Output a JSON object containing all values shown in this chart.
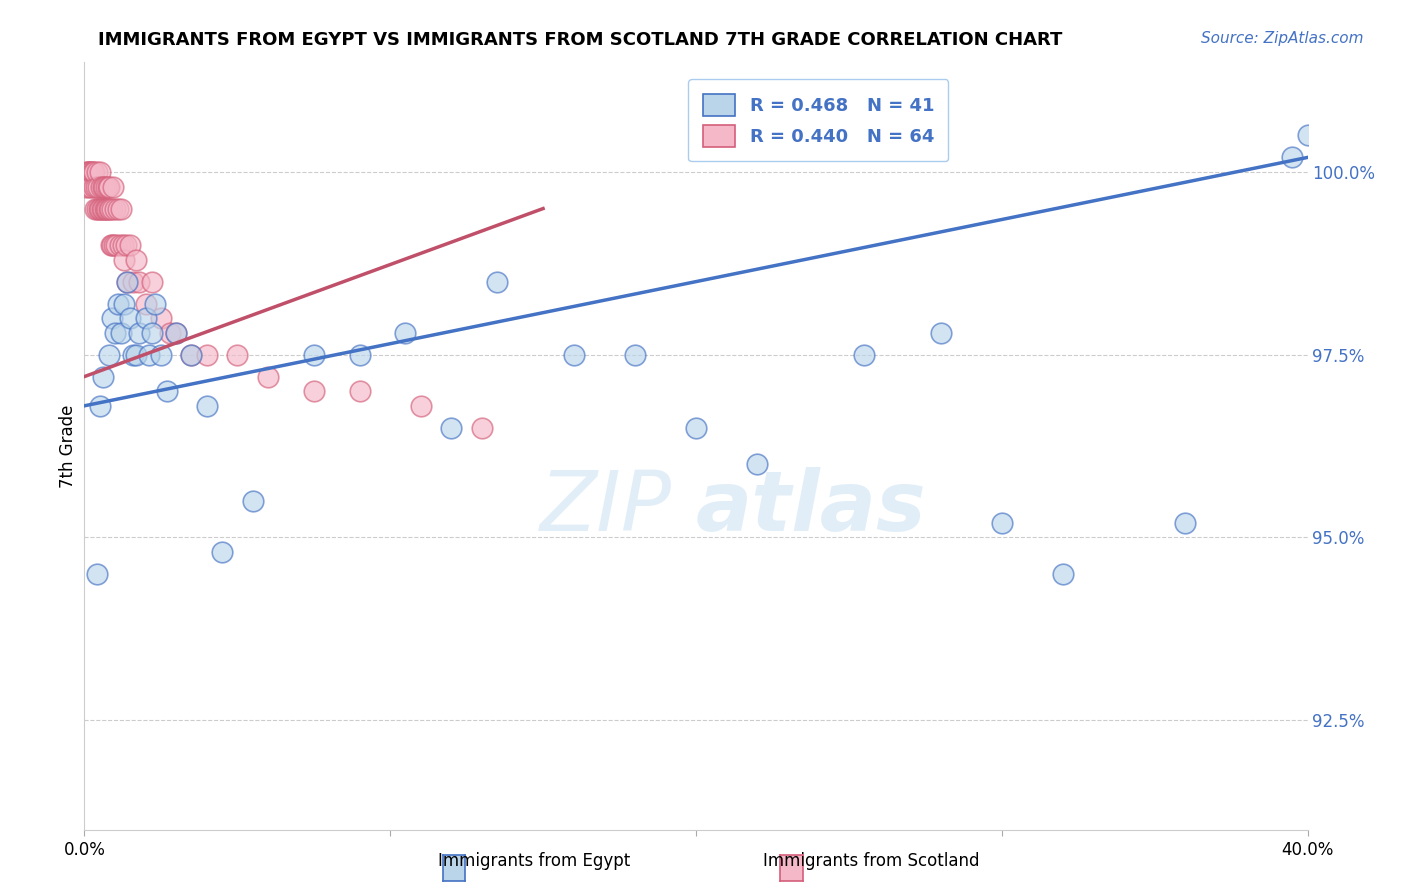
{
  "title": "IMMIGRANTS FROM EGYPT VS IMMIGRANTS FROM SCOTLAND 7TH GRADE CORRELATION CHART",
  "source": "Source: ZipAtlas.com",
  "ylabel": "7th Grade",
  "xlim": [
    0.0,
    40.0
  ],
  "ylim": [
    91.0,
    101.5
  ],
  "yticks": [
    92.5,
    95.0,
    97.5,
    100.0
  ],
  "ytick_labels": [
    "92.5%",
    "95.0%",
    "97.5%",
    "100.0%"
  ],
  "legend_r_egypt": "R = 0.468",
  "legend_n_egypt": "N = 41",
  "legend_r_scotland": "R = 0.440",
  "legend_n_scotland": "N = 64",
  "egypt_fill_color": "#bad4ea",
  "scotland_fill_color": "#f4b8c8",
  "egypt_edge_color": "#4472c4",
  "scotland_edge_color": "#d45f7a",
  "egypt_line_color": "#4472c4",
  "scotland_line_color": "#c0506a",
  "legend_text_color": "#4472c4",
  "watermark_color": "#d5e8f5",
  "egypt_scatter_x": [
    0.4,
    0.5,
    0.6,
    0.8,
    0.9,
    1.0,
    1.1,
    1.2,
    1.3,
    1.4,
    1.5,
    1.6,
    1.7,
    1.8,
    2.0,
    2.1,
    2.2,
    2.3,
    2.5,
    2.7,
    3.0,
    3.5,
    4.0,
    4.5,
    5.5,
    7.5,
    9.0,
    10.5,
    12.0,
    13.5,
    16.0,
    18.0,
    20.0,
    22.0,
    25.5,
    28.0,
    30.0,
    32.0,
    36.0,
    39.5,
    40.0
  ],
  "egypt_scatter_y": [
    94.5,
    96.8,
    97.2,
    97.5,
    98.0,
    97.8,
    98.2,
    97.8,
    98.2,
    98.5,
    98.0,
    97.5,
    97.5,
    97.8,
    98.0,
    97.5,
    97.8,
    98.2,
    97.5,
    97.0,
    97.8,
    97.5,
    96.8,
    94.8,
    95.5,
    97.5,
    97.5,
    97.8,
    96.5,
    98.5,
    97.5,
    97.5,
    96.5,
    96.0,
    97.5,
    97.8,
    95.2,
    94.5,
    95.2,
    100.2,
    100.5
  ],
  "scotland_scatter_x": [
    0.05,
    0.08,
    0.1,
    0.12,
    0.15,
    0.18,
    0.2,
    0.22,
    0.25,
    0.28,
    0.3,
    0.32,
    0.35,
    0.38,
    0.4,
    0.42,
    0.45,
    0.48,
    0.5,
    0.52,
    0.55,
    0.58,
    0.6,
    0.62,
    0.65,
    0.68,
    0.7,
    0.72,
    0.75,
    0.78,
    0.8,
    0.82,
    0.85,
    0.88,
    0.9,
    0.92,
    0.95,
    0.98,
    1.0,
    1.05,
    1.1,
    1.15,
    1.2,
    1.25,
    1.3,
    1.35,
    1.4,
    1.5,
    1.6,
    1.7,
    1.8,
    2.0,
    2.2,
    2.5,
    2.8,
    3.0,
    3.5,
    4.0,
    5.0,
    6.0,
    7.5,
    9.0,
    11.0,
    13.0
  ],
  "scotland_scatter_y": [
    99.8,
    100.0,
    100.0,
    100.0,
    99.8,
    100.0,
    100.0,
    99.8,
    100.0,
    100.0,
    99.8,
    100.0,
    99.5,
    99.8,
    100.0,
    99.5,
    99.8,
    99.5,
    100.0,
    99.5,
    99.8,
    99.5,
    99.8,
    99.5,
    99.8,
    99.5,
    99.5,
    99.8,
    99.5,
    99.8,
    99.5,
    99.8,
    99.5,
    99.0,
    99.5,
    99.0,
    99.8,
    99.0,
    99.5,
    99.0,
    99.5,
    99.0,
    99.5,
    99.0,
    98.8,
    99.0,
    98.5,
    99.0,
    98.5,
    98.8,
    98.5,
    98.2,
    98.5,
    98.0,
    97.8,
    97.8,
    97.5,
    97.5,
    97.5,
    97.2,
    97.0,
    97.0,
    96.8,
    96.5
  ]
}
